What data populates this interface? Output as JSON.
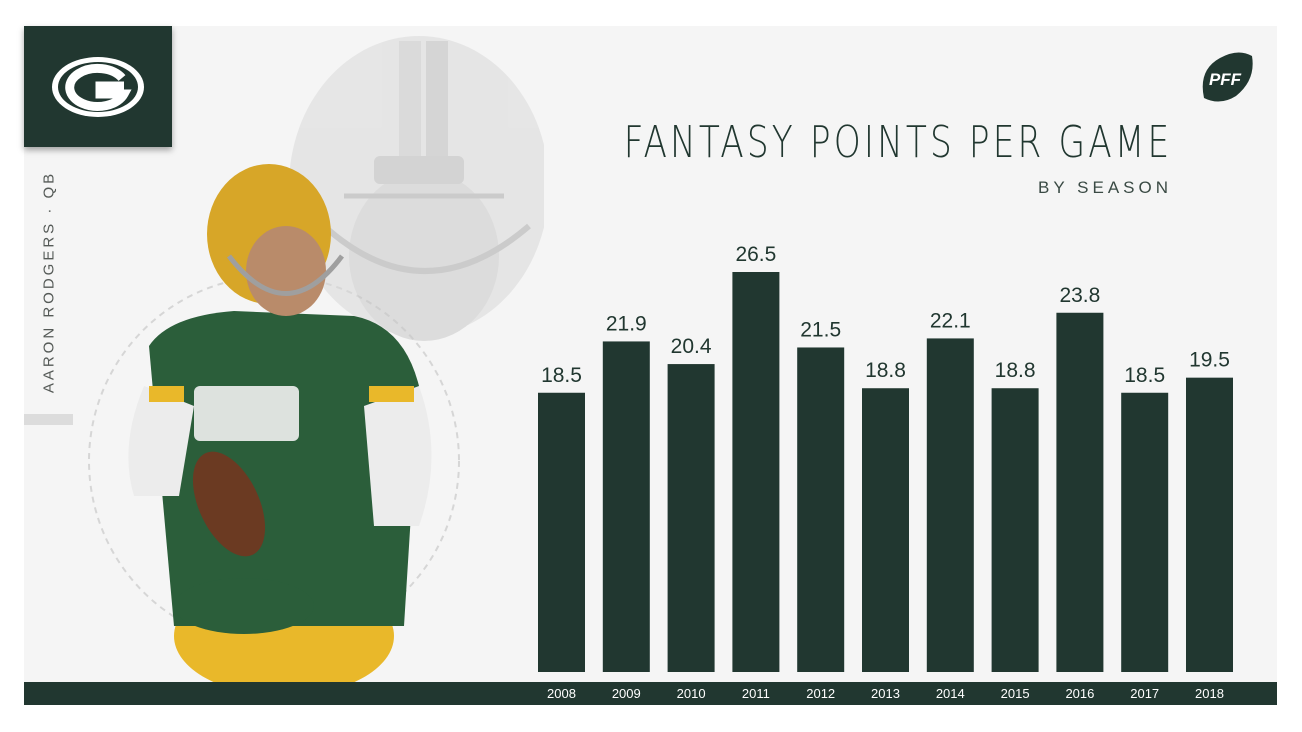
{
  "player": {
    "label": "AARON RODGERS · QB"
  },
  "team_logo": {
    "icon": "packers-g-logo-icon",
    "color": "#213730",
    "accent": "#ffffff"
  },
  "brand_logo": {
    "icon": "pff-football-logo-icon",
    "text": "PFF"
  },
  "colors": {
    "bar": "#213730",
    "background": "#f5f5f5",
    "footer": "#213730",
    "title": "#213730"
  },
  "chart_data": {
    "type": "bar",
    "title": "FANTASY POINTS PER GAME",
    "subtitle": "BY SEASON",
    "categories": [
      "2008",
      "2009",
      "2010",
      "2011",
      "2012",
      "2013",
      "2014",
      "2015",
      "2016",
      "2017",
      "2018"
    ],
    "values": [
      18.5,
      21.9,
      20.4,
      26.5,
      21.5,
      18.8,
      22.1,
      18.8,
      23.8,
      18.5,
      19.5
    ],
    "value_labels": [
      "18.5",
      "21.9",
      "20.4",
      "26.5",
      "21.5",
      "18.8",
      "22.1",
      "18.8",
      "23.8",
      "18.5",
      "19.5"
    ],
    "xlabel": "",
    "ylabel": "",
    "ylim": [
      0,
      26.5
    ],
    "grid": false,
    "legend": "none",
    "data_labels": "above bars"
  }
}
